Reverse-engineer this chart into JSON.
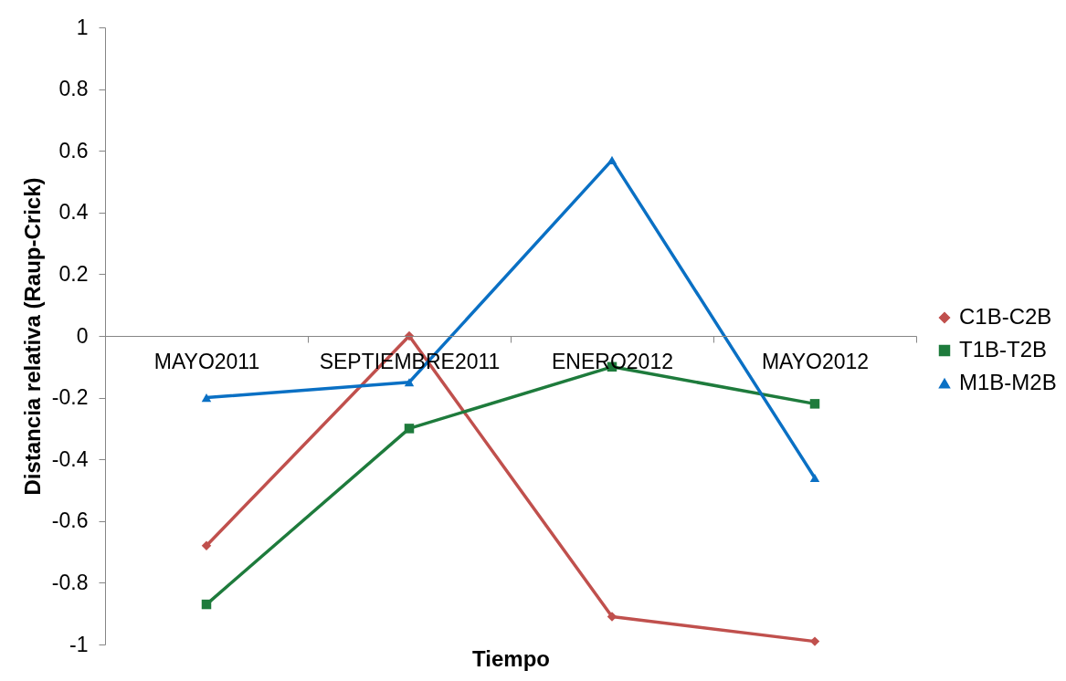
{
  "chart_data": {
    "type": "line",
    "xlabel": "Tiempo",
    "ylabel": "Distancia relativa (Raup-Crick)",
    "categories": [
      "MAYO2011",
      "SEPTIEMBRE2011",
      "ENERO2012",
      "MAYO2012"
    ],
    "series": [
      {
        "name": "C1B-C2B",
        "color": "#c0504d",
        "marker": "diamond",
        "values": [
          -0.68,
          0,
          -0.91,
          -0.99
        ]
      },
      {
        "name": "T1B-T2B",
        "color": "#1e7b3c",
        "marker": "square",
        "values": [
          -0.87,
          -0.3,
          -0.1,
          -0.22
        ]
      },
      {
        "name": "M1B-M2B",
        "color": "#0a70c4",
        "marker": "triangle",
        "values": [
          -0.2,
          -0.15,
          0.57,
          -0.46
        ]
      }
    ],
    "ylim": [
      -1,
      1
    ],
    "yticks": [
      -1,
      -0.8,
      -0.6,
      -0.4,
      -0.2,
      0,
      0.2,
      0.4,
      0.6,
      0.8,
      1
    ],
    "legend": "right",
    "line_style": "solid"
  }
}
